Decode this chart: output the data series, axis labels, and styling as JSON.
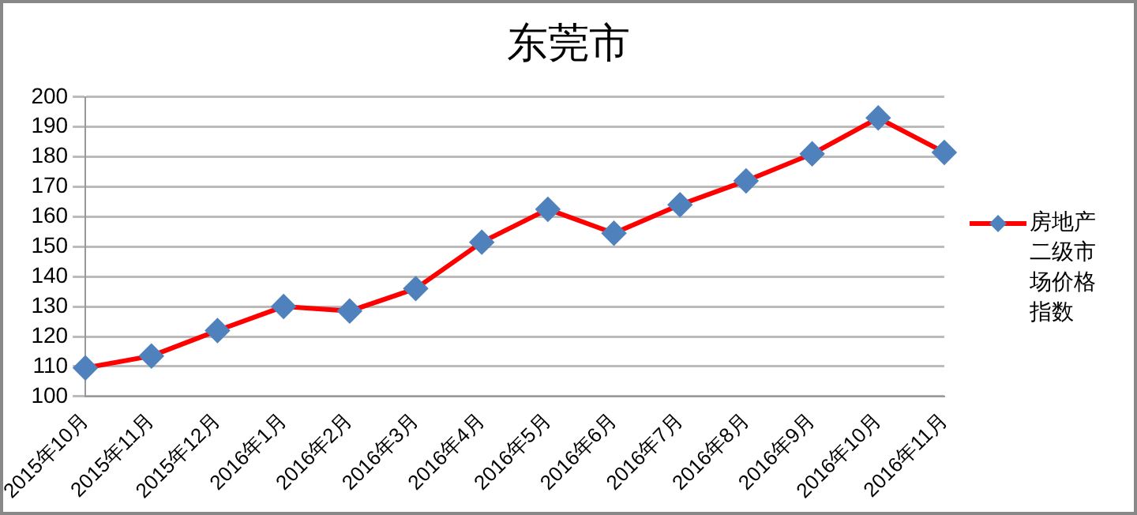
{
  "chart_data": {
    "type": "line",
    "title": "东莞市",
    "categories": [
      "2015年10月",
      "2015年11月",
      "2015年12月",
      "2016年1月",
      "2016年2月",
      "2016年3月",
      "2016年4月",
      "2016年5月",
      "2016年6月",
      "2016年7月",
      "2016年8月",
      "2016年9月",
      "2016年10月",
      "2016年11月"
    ],
    "series": [
      {
        "name": "房地产二级市场价格指数",
        "color": "#ff0000",
        "values": [
          109.5,
          113.5,
          122,
          130,
          128.5,
          136,
          151.5,
          162.5,
          154.5,
          164,
          172,
          181,
          193,
          181.5
        ]
      }
    ],
    "ylim": [
      100,
      200
    ],
    "yticks": [
      100,
      110,
      120,
      130,
      140,
      150,
      160,
      170,
      180,
      190,
      200
    ],
    "grid": "y",
    "legend": "right",
    "marker": "diamond",
    "line_style": "solid"
  }
}
